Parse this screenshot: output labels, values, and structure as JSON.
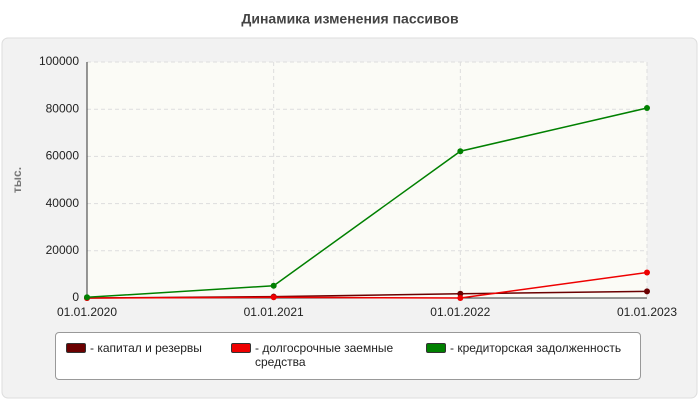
{
  "chart_data": {
    "type": "line",
    "title": "Динамика изменения пассивов",
    "y_label": "тыс.",
    "categories": [
      "01.01.2020",
      "01.01.2021",
      "01.01.2022",
      "01.01.2023"
    ],
    "series": [
      {
        "name": "- капитал и резервы",
        "color": "#6b0000",
        "values": [
          0,
          600,
          1800,
          2800
        ]
      },
      {
        "name": "- долгосрочные заемные средства",
        "color": "#ee0000",
        "values": [
          0,
          300,
          0,
          10800
        ]
      },
      {
        "name": "- кредиторская задолженность",
        "color": "#008000",
        "values": [
          300,
          5200,
          62200,
          80500
        ]
      }
    ],
    "ylim": [
      0,
      100000
    ],
    "yticks": [
      0,
      20000,
      40000,
      60000,
      80000,
      100000
    ],
    "grid": true
  }
}
